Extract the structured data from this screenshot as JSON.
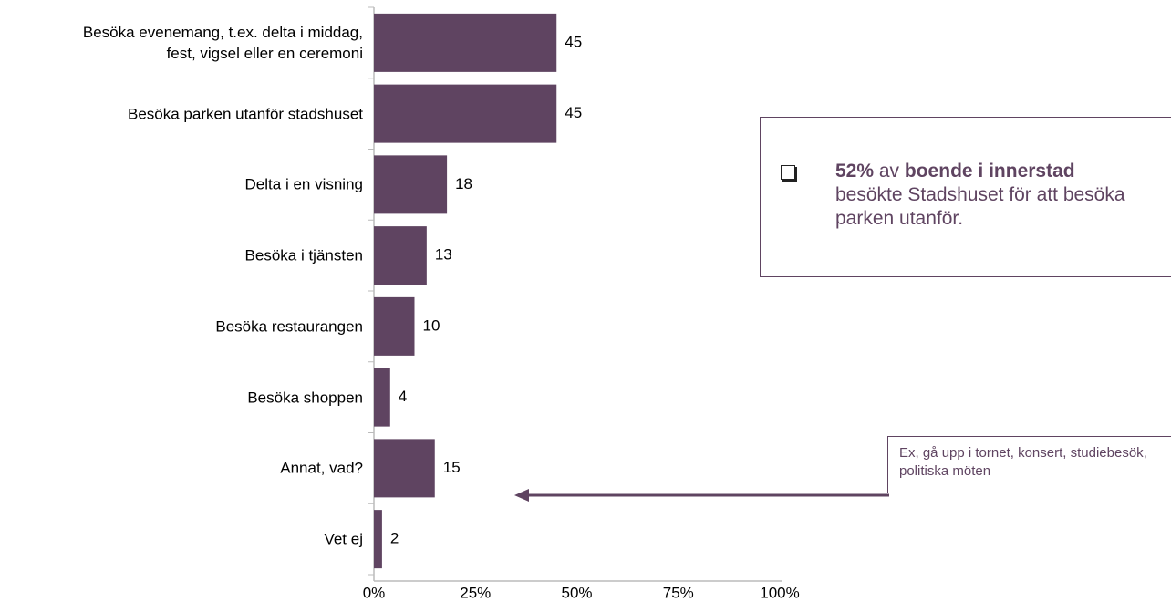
{
  "chart_data": {
    "type": "bar",
    "orientation": "horizontal",
    "categories": [
      "Besöka evenemang, t.ex. delta i middag,\nfest, vigsel eller en ceremoni",
      "Besöka parken utanför stadshuset",
      "Delta i en visning",
      "Besöka i tjänsten",
      "Besöka restaurangen",
      "Besöka shoppen",
      "Annat, vad?",
      "Vet ej"
    ],
    "values": [
      45,
      45,
      18,
      13,
      10,
      4,
      15,
      2
    ],
    "color": "#5f4461",
    "xlim": [
      0,
      100
    ],
    "xticks": [
      {
        "value": 0,
        "label": "0%"
      },
      {
        "value": 25,
        "label": "25%"
      },
      {
        "value": 50,
        "label": "50%"
      },
      {
        "value": 75,
        "label": "75%"
      },
      {
        "value": 100,
        "label": "100%"
      }
    ],
    "annotations": [
      {
        "parts": [
          {
            "text": "52%",
            "bold": true
          },
          {
            "text": "av",
            "bold": false
          },
          {
            "text": "boende i innerstad",
            "bold": true
          },
          {
            "text": "besökte Stadshuset för att besöka parken utanför.",
            "bold": false
          }
        ]
      },
      {
        "text": "Ex, gå upp i tornet, konsert, studiebesök, politiska möten"
      }
    ]
  }
}
